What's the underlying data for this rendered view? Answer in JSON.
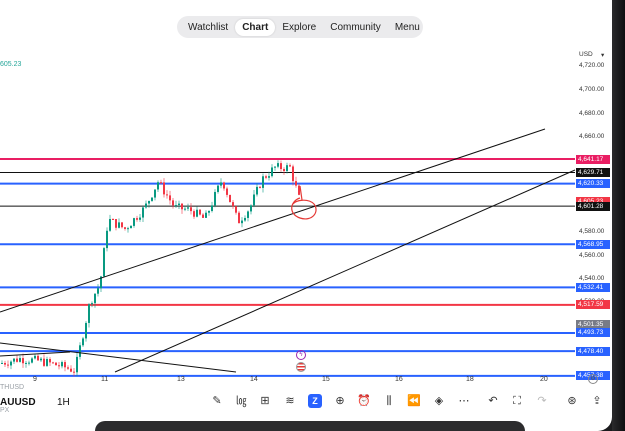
{
  "topnav": {
    "items": [
      {
        "label": "Watchlist"
      },
      {
        "label": "Chart"
      },
      {
        "label": "Explore"
      },
      {
        "label": "Community"
      },
      {
        "label": "Menu"
      }
    ]
  },
  "left_partial": {
    "top_value": "605.23",
    "bottom_line1": "THUSD",
    "bottom_line2": "PX"
  },
  "symbol": "AUUSD",
  "interval": "1H",
  "price_axis": {
    "currency": "USD",
    "ticks": [
      "4,720.00",
      "4,700.00",
      "4,680.00",
      "4,660.00",
      "4,580.00",
      "4,560.00",
      "4,540.00",
      "4,520.00"
    ],
    "labels": [
      {
        "text": "4,641.17",
        "color": "#e91e63"
      },
      {
        "text": "4,629.71",
        "color": "#111111"
      },
      {
        "text": "4,620.33",
        "color": "#2962ff"
      },
      {
        "text": "4,605.23",
        "color": "#f23645"
      },
      {
        "text": "4,601.28",
        "color": "#111111"
      },
      {
        "text": "4,568.95",
        "color": "#2962ff"
      },
      {
        "text": "4,532.41",
        "color": "#2962ff"
      },
      {
        "text": "4,517.59",
        "color": "#f23645"
      },
      {
        "text": "4,501.35",
        "color": "#787b86"
      },
      {
        "text": "4,493.73",
        "color": "#2962ff"
      },
      {
        "text": "4,478.40",
        "color": "#2962ff"
      },
      {
        "text": "4,457.38",
        "color": "#2962ff"
      }
    ]
  },
  "time_axis": {
    "ticks": [
      "9",
      "11",
      "13",
      "14",
      "15",
      "16",
      "18",
      "20"
    ]
  },
  "colors": {
    "up": "#089981",
    "down": "#f23645",
    "level_blue": "#2962ff",
    "level_pink": "#e91e63",
    "annotation": "#e53935"
  },
  "toolbar": {
    "icons": [
      "pencil-icon",
      "indicators-icon",
      "grid-icon",
      "drawing-icon",
      "z-icon",
      "plus-circle-icon",
      "alarm-icon",
      "bar-type-icon",
      "replay-icon",
      "layers-icon",
      "more-icon",
      "undo-icon",
      "fullscreen-icon",
      "redo-icon",
      "add-alert-icon",
      "share-icon"
    ],
    "z_label": "Z"
  },
  "event_markers": [
    "lightning-icon",
    "us-flag-icon"
  ]
}
